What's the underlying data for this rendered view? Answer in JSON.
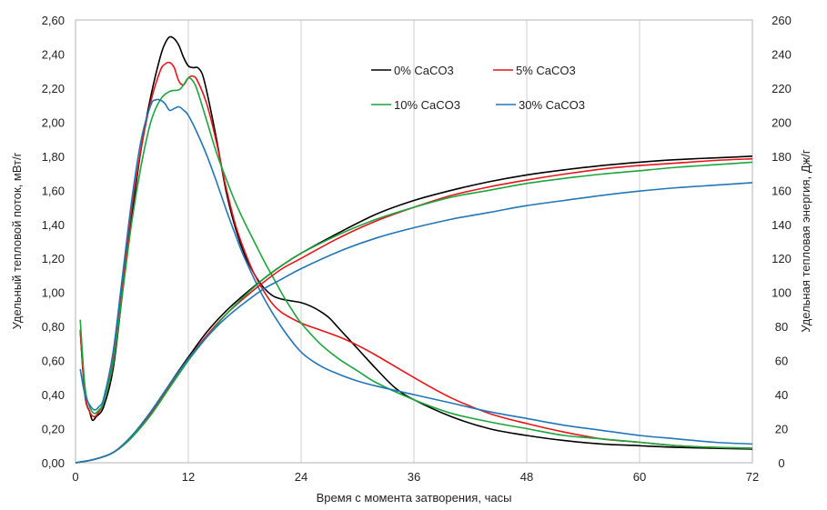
{
  "chart_data": {
    "type": "line",
    "title": "",
    "xlabel": "Время с момента затворения, часы",
    "ylabel": "Удельный тепловой поток, мВт/г",
    "ylabel_right": "Удельная тепловая энергия, Дж/г",
    "xlim": [
      0,
      72
    ],
    "ylim": [
      0,
      2.6
    ],
    "ylim_right": [
      0,
      260
    ],
    "x_ticks": [
      0,
      12,
      24,
      36,
      48,
      60,
      72
    ],
    "x_tick_labels": [
      "0",
      "12",
      "24",
      "36",
      "48",
      "60",
      "72"
    ],
    "y_ticks": [
      0,
      0.2,
      0.4,
      0.6,
      0.8,
      1.0,
      1.2,
      1.4,
      1.6,
      1.8,
      2.0,
      2.2,
      2.4,
      2.6
    ],
    "y_tick_labels": [
      "0,00",
      "0,20",
      "0,40",
      "0,60",
      "0,80",
      "1,00",
      "1,20",
      "1,40",
      "1,60",
      "1,80",
      "2,00",
      "2,20",
      "2,40",
      "2,60"
    ],
    "y2_ticks": [
      0,
      20,
      40,
      60,
      80,
      100,
      120,
      140,
      160,
      180,
      200,
      220,
      240,
      260
    ],
    "y2_tick_labels": [
      "0",
      "20",
      "40",
      "60",
      "80",
      "100",
      "120",
      "140",
      "160",
      "180",
      "200",
      "220",
      "240",
      "260"
    ],
    "grid": "vertical",
    "legend_position": "top-right",
    "series": [
      {
        "name": "0% CaCO3",
        "color": "#000000",
        "axis": "left",
        "x": [
          0.5,
          1,
          1.5,
          1.8,
          2.2,
          3,
          4,
          5,
          6,
          7,
          8,
          9,
          9.5,
          10,
          10.5,
          11,
          11.5,
          12,
          12.5,
          13,
          13.5,
          14,
          15,
          16,
          17,
          18,
          19,
          20,
          21,
          22,
          23,
          24,
          25,
          26,
          27,
          28,
          30,
          32,
          34,
          36,
          40,
          44,
          48,
          52,
          56,
          60,
          64,
          68,
          72
        ],
        "y": [
          0.78,
          0.4,
          0.3,
          0.25,
          0.27,
          0.33,
          0.55,
          1.0,
          1.45,
          1.85,
          2.15,
          2.38,
          2.46,
          2.5,
          2.49,
          2.45,
          2.38,
          2.33,
          2.32,
          2.32,
          2.28,
          2.17,
          1.9,
          1.6,
          1.38,
          1.22,
          1.11,
          1.03,
          0.98,
          0.96,
          0.95,
          0.94,
          0.92,
          0.89,
          0.85,
          0.79,
          0.67,
          0.55,
          0.44,
          0.37,
          0.27,
          0.2,
          0.16,
          0.13,
          0.11,
          0.1,
          0.09,
          0.085,
          0.08
        ]
      },
      {
        "name": "5% CaCO3",
        "color": "#e8141a",
        "axis": "left",
        "x": [
          0.5,
          1,
          1.5,
          2,
          2.5,
          3,
          4,
          5,
          6,
          7,
          8,
          9,
          9.5,
          10,
          10.5,
          11,
          11.5,
          12,
          12.5,
          13,
          14,
          15,
          16,
          17,
          18,
          19,
          20,
          21,
          22,
          24,
          26,
          28,
          30,
          32,
          36,
          40,
          44,
          48,
          52,
          56,
          60,
          64,
          68,
          72
        ],
        "y": [
          0.78,
          0.4,
          0.3,
          0.27,
          0.3,
          0.36,
          0.6,
          1.05,
          1.5,
          1.85,
          2.12,
          2.3,
          2.34,
          2.35,
          2.32,
          2.24,
          2.22,
          2.26,
          2.27,
          2.24,
          2.1,
          1.88,
          1.62,
          1.4,
          1.24,
          1.11,
          1.01,
          0.93,
          0.88,
          0.82,
          0.78,
          0.74,
          0.69,
          0.63,
          0.5,
          0.38,
          0.29,
          0.23,
          0.18,
          0.14,
          0.12,
          0.1,
          0.09,
          0.085
        ]
      },
      {
        "name": "10% CaCO3",
        "color": "#1aa63c",
        "axis": "left",
        "x": [
          0.5,
          1,
          1.5,
          2,
          2.5,
          3,
          4,
          5,
          6,
          7,
          8,
          9,
          10,
          11,
          11.5,
          12,
          12.5,
          13,
          14,
          15,
          16,
          17,
          18,
          19,
          20,
          21,
          22,
          23,
          24,
          26,
          28,
          30,
          32,
          36,
          40,
          44,
          48,
          52,
          56,
          60,
          64,
          68,
          72
        ],
        "y": [
          0.84,
          0.45,
          0.33,
          0.29,
          0.31,
          0.36,
          0.58,
          1.0,
          1.42,
          1.75,
          2.0,
          2.13,
          2.18,
          2.19,
          2.22,
          2.26,
          2.24,
          2.18,
          2.0,
          1.82,
          1.67,
          1.53,
          1.41,
          1.3,
          1.19,
          1.09,
          0.99,
          0.9,
          0.82,
          0.7,
          0.61,
          0.54,
          0.47,
          0.37,
          0.29,
          0.24,
          0.2,
          0.16,
          0.14,
          0.12,
          0.1,
          0.09,
          0.085
        ]
      },
      {
        "name": "30% CaCO3",
        "color": "#2176b8",
        "axis": "left",
        "x": [
          0.5,
          1,
          1.5,
          2,
          2.5,
          3,
          4,
          5,
          6,
          7,
          8,
          8.5,
          9,
          9.5,
          10,
          10.5,
          11,
          11.5,
          12,
          13,
          14,
          15,
          16,
          17,
          18,
          20,
          22,
          24,
          26,
          28,
          30,
          32,
          36,
          40,
          44,
          48,
          52,
          56,
          60,
          64,
          68,
          72
        ],
        "y": [
          0.55,
          0.4,
          0.34,
          0.31,
          0.33,
          0.38,
          0.65,
          1.1,
          1.55,
          1.9,
          2.1,
          2.13,
          2.13,
          2.11,
          2.07,
          2.08,
          2.09,
          2.07,
          2.04,
          1.93,
          1.8,
          1.65,
          1.49,
          1.34,
          1.2,
          0.97,
          0.79,
          0.65,
          0.57,
          0.52,
          0.48,
          0.45,
          0.4,
          0.35,
          0.3,
          0.26,
          0.22,
          0.19,
          0.16,
          0.14,
          0.12,
          0.11
        ]
      },
      {
        "name": "0% CaCO3",
        "color": "#000000",
        "axis": "right",
        "x": [
          0,
          2,
          4,
          6,
          8,
          10,
          12,
          14,
          16,
          18,
          20,
          22,
          24,
          28,
          32,
          36,
          40,
          44,
          48,
          52,
          56,
          60,
          64,
          68,
          72
        ],
        "y": [
          0,
          2,
          6,
          15,
          29,
          46,
          62,
          77,
          89,
          99,
          108,
          116,
          123,
          135,
          146,
          154,
          160,
          165,
          169,
          172,
          174.5,
          176.5,
          178,
          179,
          180
        ]
      },
      {
        "name": "5% CaCO3",
        "color": "#e8141a",
        "axis": "right",
        "x": [
          0,
          2,
          4,
          6,
          8,
          10,
          12,
          14,
          16,
          18,
          20,
          22,
          24,
          28,
          32,
          36,
          40,
          44,
          48,
          52,
          56,
          60,
          64,
          68,
          72
        ],
        "y": [
          0,
          2,
          6,
          15,
          29,
          45,
          61,
          75,
          87,
          97,
          106,
          114,
          120,
          132,
          142,
          150,
          157,
          162,
          166,
          169.5,
          172.5,
          174.5,
          176,
          177.5,
          178.5
        ]
      },
      {
        "name": "10% CaCO3",
        "color": "#1aa63c",
        "axis": "right",
        "x": [
          0,
          2,
          4,
          6,
          8,
          10,
          12,
          14,
          16,
          18,
          20,
          22,
          24,
          28,
          32,
          36,
          40,
          44,
          48,
          52,
          56,
          60,
          64,
          68,
          72
        ],
        "y": [
          0,
          2,
          6,
          15,
          28,
          44,
          60,
          74,
          87,
          98,
          108,
          116,
          123,
          134,
          143,
          150,
          156,
          160,
          164,
          167,
          169.5,
          171.5,
          173.5,
          175,
          176.5
        ]
      },
      {
        "name": "30% CaCO3",
        "color": "#2176b8",
        "axis": "right",
        "x": [
          0,
          2,
          4,
          6,
          8,
          10,
          12,
          14,
          16,
          18,
          20,
          22,
          24,
          28,
          32,
          36,
          40,
          44,
          48,
          52,
          56,
          60,
          64,
          68,
          72
        ],
        "y": [
          0,
          2,
          6,
          16,
          30,
          46,
          61,
          74,
          85,
          94,
          102,
          108,
          114,
          124,
          132,
          138,
          143,
          147,
          151,
          154,
          157,
          159.5,
          161.5,
          163,
          164.5
        ]
      }
    ],
    "legend": [
      {
        "label": "0% CaCO3",
        "color": "#000000"
      },
      {
        "label": "5% CaCO3",
        "color": "#e8141a"
      },
      {
        "label": "10% CaCO3",
        "color": "#1aa63c"
      },
      {
        "label": "30% CaCO3",
        "color": "#2176b8"
      }
    ]
  }
}
